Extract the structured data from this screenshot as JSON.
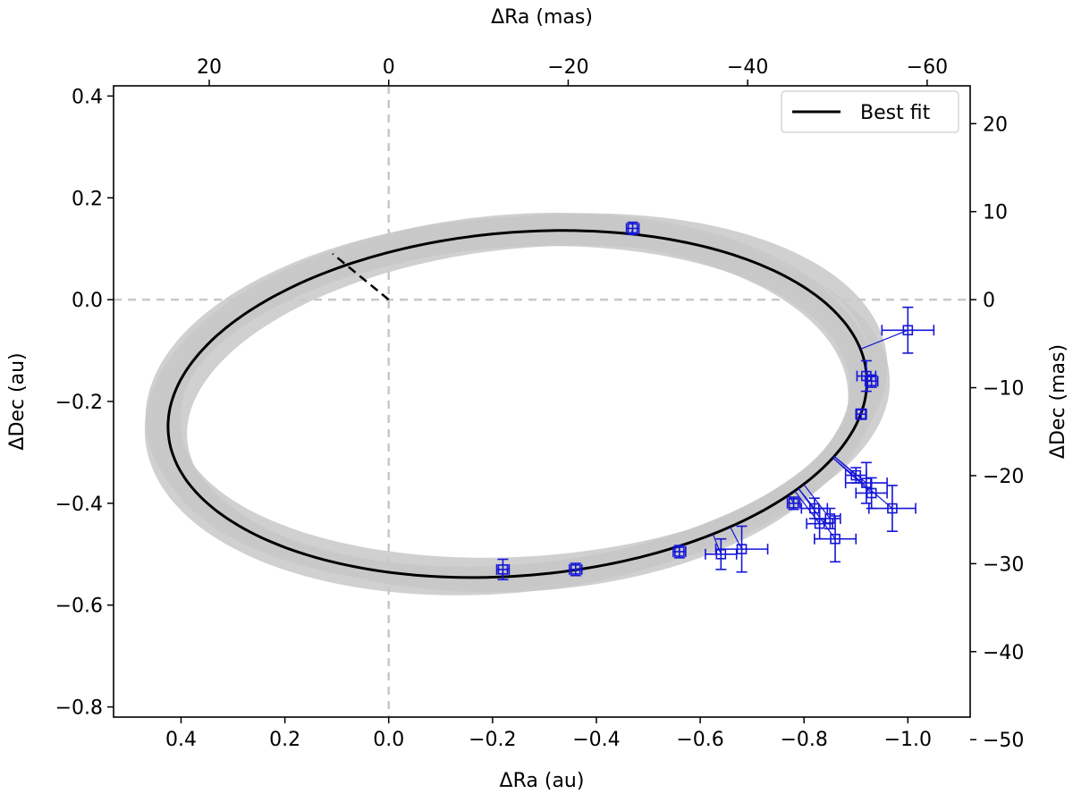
{
  "chart_data": {
    "type": "scatter",
    "title": "",
    "xlabel": "ΔRa (au)",
    "ylabel": "ΔDec (au)",
    "x2label": "ΔRa (mas)",
    "y2label": "ΔDec (mas)",
    "xlim": [
      0.53,
      -1.12
    ],
    "ylim": [
      -0.82,
      0.42
    ],
    "x_inverted": true,
    "x_ticks": [
      0.4,
      0.2,
      0.0,
      -0.2,
      -0.4,
      -0.6,
      -0.8,
      -1.0
    ],
    "x_tick_labels": [
      "0.4",
      "0.2",
      "0.0",
      "−0.2",
      "−0.4",
      "−0.6",
      "−0.8",
      "−1.0"
    ],
    "y_ticks": [
      0.4,
      0.2,
      0.0,
      -0.2,
      -0.4,
      -0.6,
      -0.8
    ],
    "y_tick_labels": [
      "0.4",
      "0.2",
      "0.0",
      "−0.2",
      "−0.4",
      "−0.6",
      "−0.8"
    ],
    "x2_ticks_au": [
      0.3457,
      0.0,
      -0.3457,
      -0.6914,
      -1.0371
    ],
    "x2_tick_labels": [
      "20",
      "0",
      "−20",
      "−40",
      "−60"
    ],
    "y2_ticks_au": [
      0.3457,
      0.1729,
      0.0,
      -0.1729,
      -0.3457,
      -0.5186,
      -0.6914,
      -0.8643
    ],
    "y2_tick_labels": [
      "20",
      "10",
      "0",
      "−10",
      "−20",
      "−30",
      "−40",
      "−50"
    ],
    "grid": false,
    "legend": {
      "placement": "top-right",
      "entries": [
        "Best fit"
      ]
    },
    "best_fit_orbit": {
      "center": [
        -0.248,
        -0.205
      ],
      "semi_major": 0.675,
      "semi_minor": 0.337,
      "rotation_deg": -5
    },
    "node_line": {
      "from": [
        0.0,
        0.0
      ],
      "to": [
        0.108,
        0.09
      ]
    },
    "zero_lines": {
      "x": 0.0,
      "y": 0.0
    },
    "series": [
      {
        "x": [
          -0.47,
          -1.0,
          -0.92,
          -0.93,
          -0.91,
          -0.9,
          -0.92,
          -0.97,
          -0.93,
          -0.78,
          -0.82,
          -0.85,
          -0.86,
          -0.83,
          -0.68,
          -0.64,
          -0.56,
          -0.36,
          -0.22
        ],
        "y": [
          0.14,
          -0.06,
          -0.15,
          -0.16,
          -0.225,
          -0.345,
          -0.36,
          -0.41,
          -0.38,
          -0.4,
          -0.41,
          -0.43,
          -0.47,
          -0.44,
          -0.49,
          -0.5,
          -0.495,
          -0.53,
          -0.53
        ],
        "xerr": [
          0.012,
          0.05,
          0.018,
          0.012,
          0.01,
          0.02,
          0.04,
          0.045,
          0.03,
          0.012,
          0.025,
          0.02,
          0.04,
          0.025,
          0.05,
          0.03,
          0.012,
          0.012,
          0.012
        ],
        "yerr": [
          0.012,
          0.045,
          0.03,
          0.012,
          0.01,
          0.015,
          0.04,
          0.045,
          0.03,
          0.012,
          0.02,
          0.02,
          0.045,
          0.03,
          0.045,
          0.03,
          0.012,
          0.012,
          0.02
        ]
      }
    ]
  }
}
